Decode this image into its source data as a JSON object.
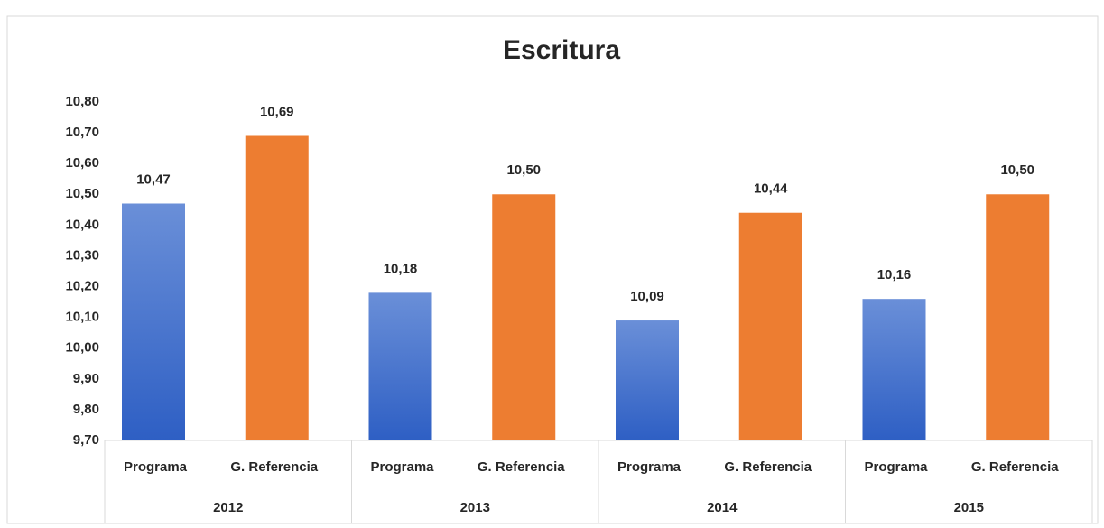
{
  "chart_data": {
    "type": "bar",
    "title": "Escritura",
    "categories": [
      "Programa",
      "G. Referencia",
      "Programa",
      "G. Referencia",
      "Programa",
      "G. Referencia",
      "Programa",
      "G. Referencia"
    ],
    "groups": [
      "2012",
      "2013",
      "2014",
      "2015"
    ],
    "values": [
      10.47,
      10.69,
      10.18,
      10.5,
      10.09,
      10.44,
      10.16,
      10.5
    ],
    "value_labels": [
      "10,47",
      "10,69",
      "10,18",
      "10,50",
      "10,09",
      "10,44",
      "10,16",
      "10,50"
    ],
    "colors": [
      "#4472c4",
      "#ed7d31",
      "#4472c4",
      "#ed7d31",
      "#4472c4",
      "#ed7d31",
      "#4472c4",
      "#ed7d31"
    ],
    "ylim": [
      9.7,
      10.8
    ],
    "yticks": [
      {
        "value": 9.7,
        "label": "9,70"
      },
      {
        "value": 9.8,
        "label": "9,80"
      },
      {
        "value": 9.9,
        "label": "9,90"
      },
      {
        "value": 10.0,
        "label": "10,00"
      },
      {
        "value": 10.1,
        "label": "10,10"
      },
      {
        "value": 10.2,
        "label": "10,20"
      },
      {
        "value": 10.3,
        "label": "10,30"
      },
      {
        "value": 10.4,
        "label": "10,40"
      },
      {
        "value": 10.5,
        "label": "10,50"
      },
      {
        "value": 10.6,
        "label": "10,60"
      },
      {
        "value": 10.7,
        "label": "10,70"
      },
      {
        "value": 10.8,
        "label": "10,80"
      }
    ],
    "grid": false
  }
}
